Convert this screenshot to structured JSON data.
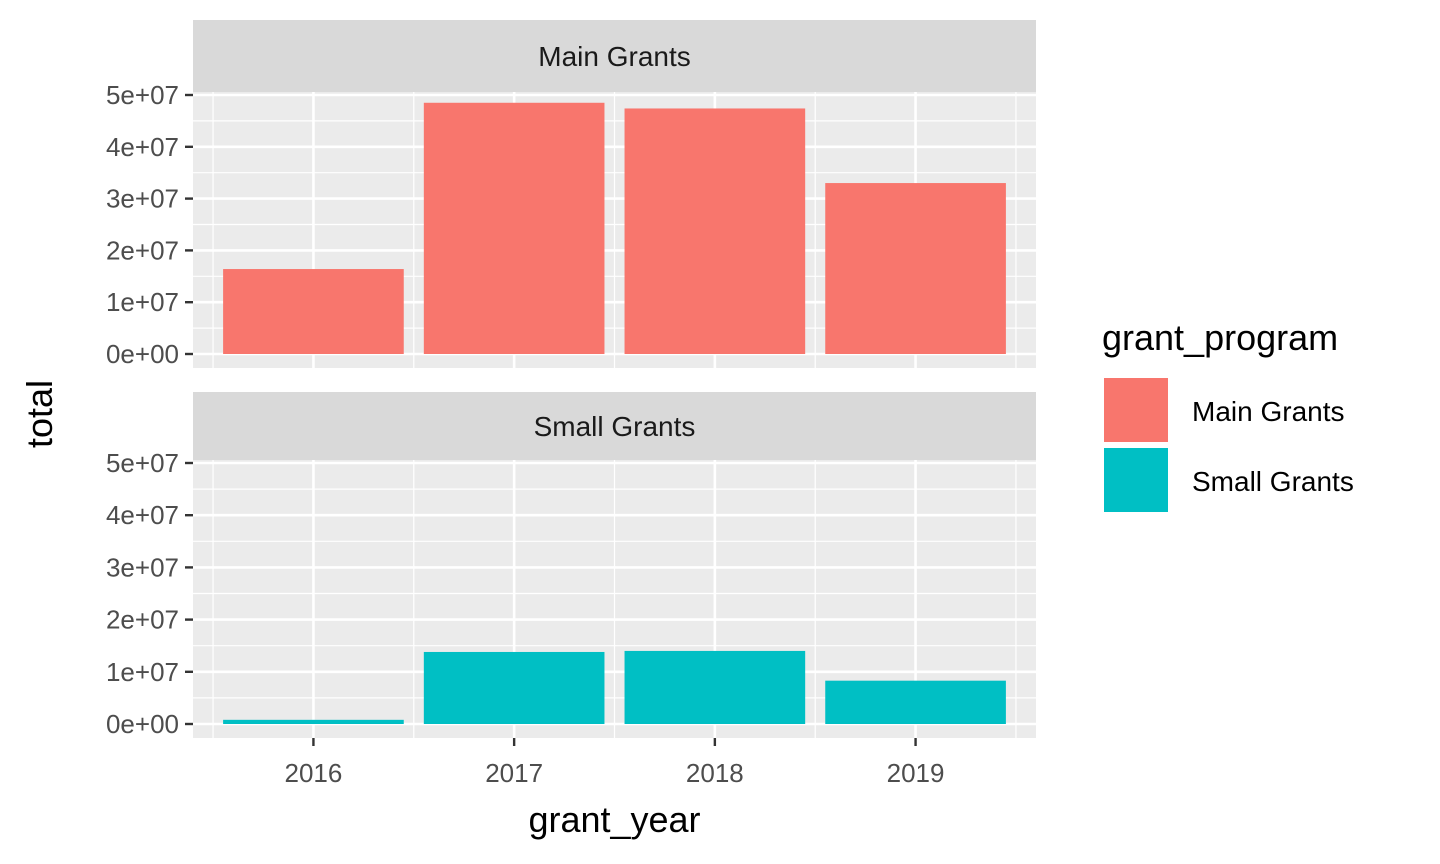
{
  "chart_data": {
    "type": "bar",
    "categories": [
      "2016",
      "2017",
      "2018",
      "2019"
    ],
    "xlabel": "grant_year",
    "ylabel": "total",
    "ylim": [
      0,
      50000000
    ],
    "y_ticks": [
      {
        "value": 0,
        "label": "0e+00"
      },
      {
        "value": 10000000,
        "label": "1e+07"
      },
      {
        "value": 20000000,
        "label": "2e+07"
      },
      {
        "value": 30000000,
        "label": "3e+07"
      },
      {
        "value": 40000000,
        "label": "4e+07"
      },
      {
        "value": 50000000,
        "label": "5e+07"
      }
    ],
    "facets": [
      {
        "strip_label": "Main Grants",
        "color": "#F8766D",
        "values": [
          16400000,
          48500000,
          47400000,
          33000000
        ]
      },
      {
        "strip_label": "Small Grants",
        "color": "#00BFC4",
        "values": [
          800000,
          13800000,
          14000000,
          8300000
        ]
      }
    ],
    "legend": {
      "title": "grant_program",
      "position": "right",
      "entries": [
        {
          "label": "Main Grants",
          "color": "#F8766D"
        },
        {
          "label": "Small Grants",
          "color": "#00BFC4"
        }
      ]
    },
    "grid": true,
    "panel_background": "#EBEBEB",
    "strip_background": "#D9D9D9"
  }
}
